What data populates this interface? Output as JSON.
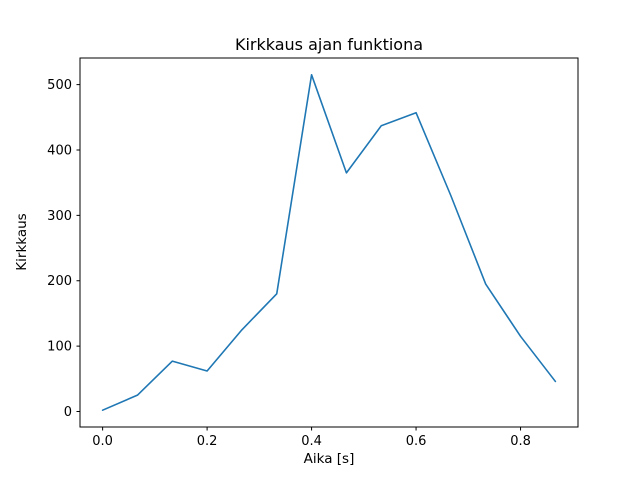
{
  "chart_data": {
    "type": "line",
    "title": "Kirkkaus ajan funktiona",
    "xlabel": "Aika [s]",
    "ylabel": "Kirkkaus",
    "x": [
      0.0,
      0.0667,
      0.1333,
      0.2,
      0.2667,
      0.3333,
      0.4,
      0.4667,
      0.5333,
      0.6,
      0.6667,
      0.7333,
      0.8,
      0.8667
    ],
    "y": [
      2,
      25,
      77,
      62,
      125,
      180,
      515,
      365,
      437,
      457,
      330,
      195,
      115,
      46
    ],
    "xlim": [
      -0.0433,
      0.91
    ],
    "ylim": [
      -23.7,
      540.7
    ],
    "xticks": [
      0.0,
      0.2,
      0.4,
      0.6,
      0.8
    ],
    "xtick_labels": [
      "0.0",
      "0.2",
      "0.4",
      "0.6",
      "0.8"
    ],
    "yticks": [
      0,
      100,
      200,
      300,
      400,
      500
    ],
    "ytick_labels": [
      "0",
      "100",
      "200",
      "300",
      "400",
      "500"
    ],
    "line_color": "#1f77b4",
    "spine_color": "#000000",
    "grid": false,
    "legend": "none"
  }
}
